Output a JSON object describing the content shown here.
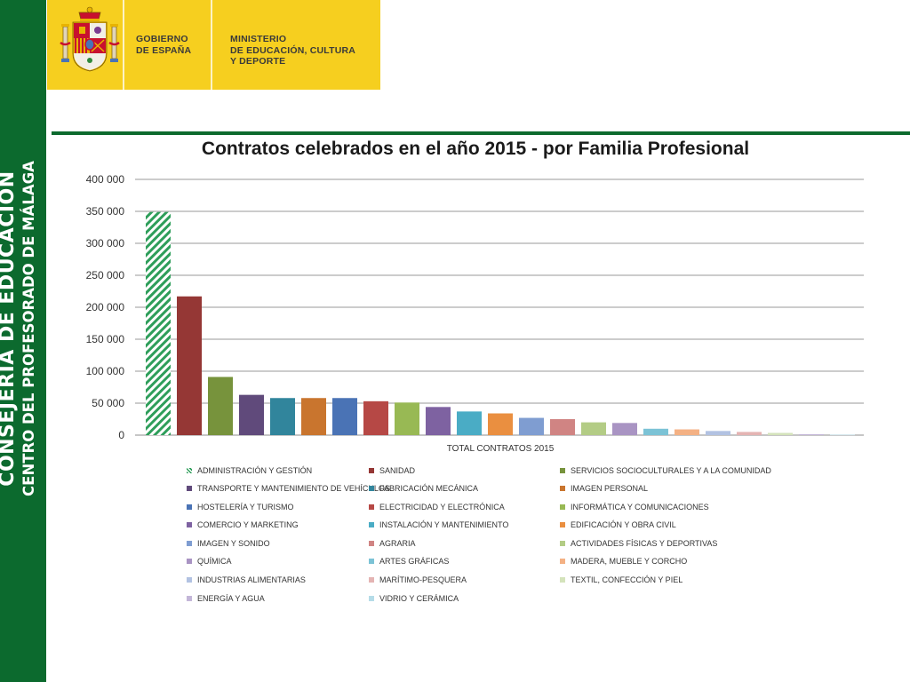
{
  "sidebar": {
    "title": "CONSEJERÍA DE EDUCACIÓN",
    "subtitle": "CENTRO DEL PROFESORADO DE MÁLAGA"
  },
  "header": {
    "gobierno": "GOBIERNO\nDE ESPAÑA",
    "ministerio": "MINISTERIO\nDE EDUCACIÓN, CULTURA\nY DEPORTE"
  },
  "colors": {
    "sidebar": "#0c6a2e",
    "header": "#f6cf1f",
    "divider": "#0c6a2e"
  },
  "chart_data": {
    "type": "bar",
    "title": "Contratos celebrados en el año 2015 - por Familia Profesional",
    "xlabel": "TOTAL CONTRATOS 2015",
    "ylabel": "",
    "ylim": [
      0,
      400000
    ],
    "yticks": [
      0,
      50000,
      100000,
      150000,
      200000,
      250000,
      300000,
      350000,
      400000
    ],
    "ytick_labels": [
      "0",
      "50 000",
      "100 000",
      "150 000",
      "200 000",
      "250 000",
      "300 000",
      "350 000",
      "400 000"
    ],
    "categories": [
      "TOTAL CONTRATOS 2015"
    ],
    "grid": true,
    "legend_position": "bottom",
    "series": [
      {
        "name": "ADMINISTRACIÓN Y GESTIÓN",
        "values": [
          349000
        ],
        "color": "#2e9e5a",
        "pattern": "hatch"
      },
      {
        "name": "SANIDAD",
        "values": [
          217000
        ],
        "color": "#953735"
      },
      {
        "name": "SERVICIOS SOCIOCULTURALES Y A LA COMUNIDAD",
        "values": [
          91000
        ],
        "color": "#77933c"
      },
      {
        "name": "TRANSPORTE Y MANTENIMIENTO DE VEHÍCULOS",
        "values": [
          63000
        ],
        "color": "#604a7b"
      },
      {
        "name": "FABRICACIÓN MECÁNICA",
        "values": [
          58000
        ],
        "color": "#31859c"
      },
      {
        "name": "IMAGEN PERSONAL",
        "values": [
          58000
        ],
        "color": "#c9752e"
      },
      {
        "name": "HOSTELERÍA Y TURISMO",
        "values": [
          58000
        ],
        "color": "#4a73b5"
      },
      {
        "name": "ELECTRICIDAD Y ELECTRÓNICA",
        "values": [
          53000
        ],
        "color": "#b64845"
      },
      {
        "name": "INFORMÁTICA Y COMUNICACIONES",
        "values": [
          51000
        ],
        "color": "#98b954"
      },
      {
        "name": "COMERCIO Y MARKETING",
        "values": [
          44000
        ],
        "color": "#7e62a1"
      },
      {
        "name": "INSTALACIÓN Y MANTENIMIENTO",
        "values": [
          37000
        ],
        "color": "#4aacc5"
      },
      {
        "name": "EDIFICACIÓN Y OBRA CIVIL",
        "values": [
          34000
        ],
        "color": "#ea8f40"
      },
      {
        "name": "IMAGEN Y SONIDO",
        "values": [
          27000
        ],
        "color": "#7f9dd1"
      },
      {
        "name": "AGRARIA",
        "values": [
          25000
        ],
        "color": "#d08483"
      },
      {
        "name": "ACTIVIDADES FÍSICAS Y DEPORTIVAS",
        "values": [
          20000
        ],
        "color": "#b3cc85"
      },
      {
        "name": "QUÍMICA",
        "values": [
          19000
        ],
        "color": "#a994c3"
      },
      {
        "name": "ARTES GRÁFICAS",
        "values": [
          10000
        ],
        "color": "#7cc3d6"
      },
      {
        "name": "MADERA, MUEBLE Y CORCHO",
        "values": [
          9000
        ],
        "color": "#f4b184"
      },
      {
        "name": "INDUSTRIAS ALIMENTARIAS",
        "values": [
          6500
        ],
        "color": "#b2c2e2"
      },
      {
        "name": "MARÍTIMO-PESQUERA",
        "values": [
          5000
        ],
        "color": "#e4b4b3"
      },
      {
        "name": "TEXTIL, CONFECCIÓN Y PIEL",
        "values": [
          3500
        ],
        "color": "#d4e3bb"
      },
      {
        "name": "ENERGÍA Y AGUA",
        "values": [
          1500
        ],
        "color": "#c3b6d8"
      },
      {
        "name": "VIDRIO Y CERÁMICA",
        "values": [
          600
        ],
        "color": "#b5dce8"
      }
    ]
  }
}
